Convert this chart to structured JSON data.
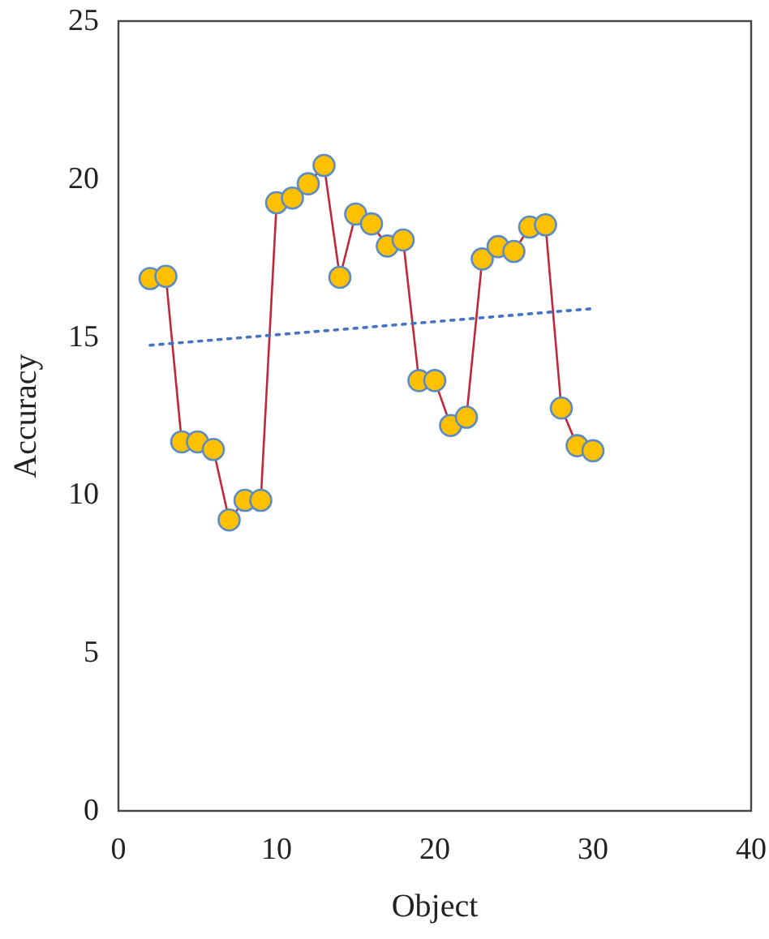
{
  "chart_data": {
    "type": "line",
    "xlabel": "Object",
    "ylabel": "Accuracy",
    "xlim": [
      0,
      40
    ],
    "xticks": [
      0,
      10,
      20,
      30,
      40
    ],
    "ylim": [
      0,
      25
    ],
    "yticks": [
      0,
      5,
      10,
      15,
      20,
      25
    ],
    "grid": false,
    "marker": "circle",
    "x": [
      2,
      3,
      4,
      5,
      6,
      7,
      8,
      9,
      10,
      11,
      12,
      13,
      14,
      15,
      16,
      17,
      18,
      19,
      20,
      21,
      22,
      23,
      24,
      25,
      26,
      27,
      28,
      29,
      30
    ],
    "series": [
      {
        "color": "#c0283a",
        "line_style": "solid",
        "values": [
          16.85,
          16.92,
          11.68,
          11.68,
          11.44,
          9.21,
          9.83,
          9.83,
          19.25,
          19.4,
          19.85,
          20.43,
          16.89,
          18.89,
          18.58,
          17.88,
          18.07,
          13.62,
          13.62,
          12.2,
          12.46,
          17.47,
          17.86,
          17.71,
          18.48,
          18.55,
          12.75,
          11.56,
          11.4
        ]
      },
      {
        "color": "#4472c4",
        "marker": "none",
        "line_style": "dotted",
        "x": [
          2,
          30
        ],
        "values": [
          14.74,
          15.9
        ]
      }
    ]
  }
}
